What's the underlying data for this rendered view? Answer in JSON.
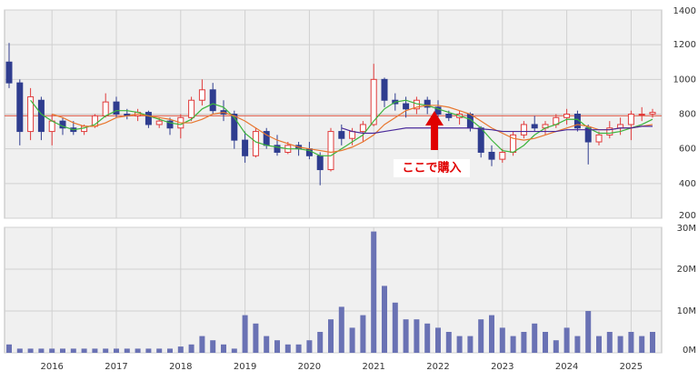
{
  "chart_data": [
    {
      "type": "candlestick",
      "categories": [
        null,
        null,
        null,
        null,
        "2016",
        null,
        null,
        null,
        null,
        null,
        "2017",
        null,
        null,
        null,
        null,
        null,
        "2018",
        null,
        null,
        null,
        null,
        null,
        "2019",
        null,
        null,
        null,
        null,
        null,
        "2020",
        null,
        null,
        null,
        null,
        null,
        "2021",
        null,
        null,
        null,
        null,
        null,
        "2022",
        null,
        null,
        null,
        null,
        null,
        "2023",
        null,
        null,
        null,
        null,
        null,
        "2024",
        null,
        null,
        null,
        null,
        null,
        "2025",
        null,
        null
      ],
      "open": [
        1100,
        980,
        700,
        880,
        700,
        760,
        720,
        700,
        730,
        790,
        870,
        800,
        790,
        810,
        740,
        760,
        720,
        780,
        880,
        940,
        820,
        800,
        650,
        560,
        700,
        620,
        580,
        620,
        600,
        560,
        480,
        700,
        660,
        700,
        740,
        1000,
        880,
        860,
        830,
        880,
        840,
        800,
        780,
        800,
        720,
        580,
        540,
        580,
        680,
        740,
        720,
        740,
        780,
        800,
        720,
        640,
        680,
        720,
        740,
        800,
        800
      ],
      "high": [
        1210,
        1000,
        950,
        900,
        800,
        780,
        760,
        740,
        800,
        920,
        900,
        830,
        830,
        820,
        780,
        780,
        800,
        900,
        1000,
        980,
        880,
        820,
        700,
        720,
        720,
        680,
        640,
        640,
        640,
        580,
        720,
        740,
        720,
        760,
        1090,
        1010,
        920,
        900,
        900,
        900,
        880,
        820,
        820,
        810,
        730,
        620,
        600,
        700,
        760,
        790,
        760,
        800,
        830,
        820,
        740,
        700,
        760,
        780,
        820,
        840,
        830
      ],
      "low": [
        950,
        620,
        650,
        650,
        620,
        680,
        680,
        680,
        720,
        780,
        780,
        770,
        760,
        720,
        720,
        680,
        660,
        760,
        850,
        800,
        760,
        600,
        520,
        550,
        600,
        560,
        570,
        560,
        540,
        390,
        470,
        620,
        620,
        640,
        730,
        840,
        820,
        780,
        800,
        800,
        780,
        760,
        740,
        700,
        550,
        500,
        520,
        560,
        660,
        700,
        680,
        720,
        740,
        700,
        510,
        620,
        660,
        680,
        650,
        760,
        780
      ],
      "close": [
        980,
        700,
        900,
        700,
        760,
        720,
        700,
        730,
        790,
        870,
        800,
        790,
        810,
        740,
        760,
        720,
        780,
        880,
        940,
        820,
        800,
        650,
        560,
        700,
        620,
        580,
        620,
        600,
        560,
        480,
        700,
        660,
        700,
        740,
        1000,
        880,
        860,
        830,
        880,
        840,
        800,
        780,
        800,
        720,
        580,
        540,
        580,
        680,
        740,
        720,
        740,
        780,
        800,
        720,
        640,
        680,
        720,
        740,
        800,
        800,
        810
      ],
      "up_color": "#e03a3a",
      "down_color": "#2f3d8f",
      "series": [
        {
          "color": "#3cb43c",
          "values": [
            null,
            null,
            880,
            800,
            760,
            730,
            710,
            720,
            740,
            790,
            820,
            820,
            810,
            790,
            770,
            750,
            740,
            770,
            830,
            860,
            840,
            780,
            690,
            640,
            620,
            610,
            600,
            600,
            590,
            560,
            560,
            600,
            640,
            680,
            760,
            830,
            870,
            880,
            860,
            850,
            830,
            810,
            790,
            770,
            720,
            650,
            590,
            580,
            620,
            680,
            720,
            740,
            770,
            770,
            720,
            690,
            690,
            700,
            720,
            740,
            770
          ]
        },
        {
          "color": "#e8772e",
          "values": [
            null,
            null,
            null,
            null,
            800,
            780,
            750,
            730,
            730,
            750,
            780,
            790,
            800,
            790,
            780,
            770,
            750,
            750,
            770,
            800,
            810,
            790,
            760,
            720,
            680,
            650,
            630,
            610,
            600,
            590,
            580,
            590,
            610,
            640,
            680,
            740,
            780,
            820,
            840,
            850,
            850,
            840,
            820,
            800,
            760,
            720,
            690,
            660,
            650,
            660,
            680,
            700,
            720,
            740,
            730,
            710,
            710,
            720,
            720,
            730,
            740
          ]
        },
        {
          "color": "#4a2a9a",
          "values": [
            null,
            null,
            null,
            null,
            null,
            null,
            null,
            null,
            null,
            null,
            null,
            null,
            null,
            null,
            null,
            null,
            null,
            null,
            null,
            null,
            null,
            null,
            null,
            null,
            null,
            null,
            null,
            null,
            null,
            null,
            null,
            720,
            700,
            690,
            690,
            700,
            710,
            720,
            720,
            720,
            720,
            720,
            720,
            720,
            715,
            710,
            700,
            700,
            700,
            700,
            700,
            700,
            710,
            710,
            710,
            710,
            710,
            720,
            720,
            730,
            730
          ]
        }
      ],
      "hline": 790,
      "hline_color": "#e07060",
      "annotation": "ここで購入",
      "ylim": [
        200,
        1400
      ],
      "yticks": [
        200,
        400,
        600,
        800,
        1000,
        1200,
        1400
      ],
      "grid": true
    },
    {
      "type": "bar",
      "values": [
        2,
        1,
        1,
        1,
        1,
        1,
        1,
        1,
        1,
        1,
        1,
        1,
        1,
        1,
        1,
        1,
        1.5,
        2,
        4,
        3,
        2,
        1,
        9,
        7,
        4,
        3,
        2,
        2,
        3,
        5,
        8,
        11,
        6,
        9,
        29,
        16,
        12,
        8,
        8,
        7,
        6,
        5,
        4,
        4,
        8,
        9,
        6,
        4,
        5,
        7,
        5,
        3,
        6,
        4,
        10,
        4,
        5,
        4,
        5,
        4,
        5
      ],
      "color": "#6a72b4",
      "ylim": [
        0,
        30
      ],
      "yticks": [
        {
          "value": 0,
          "label": "0M"
        },
        {
          "value": 10,
          "label": "10M"
        },
        {
          "value": 20,
          "label": "20M"
        },
        {
          "value": 30,
          "label": "30M"
        }
      ],
      "grid": true
    }
  ]
}
